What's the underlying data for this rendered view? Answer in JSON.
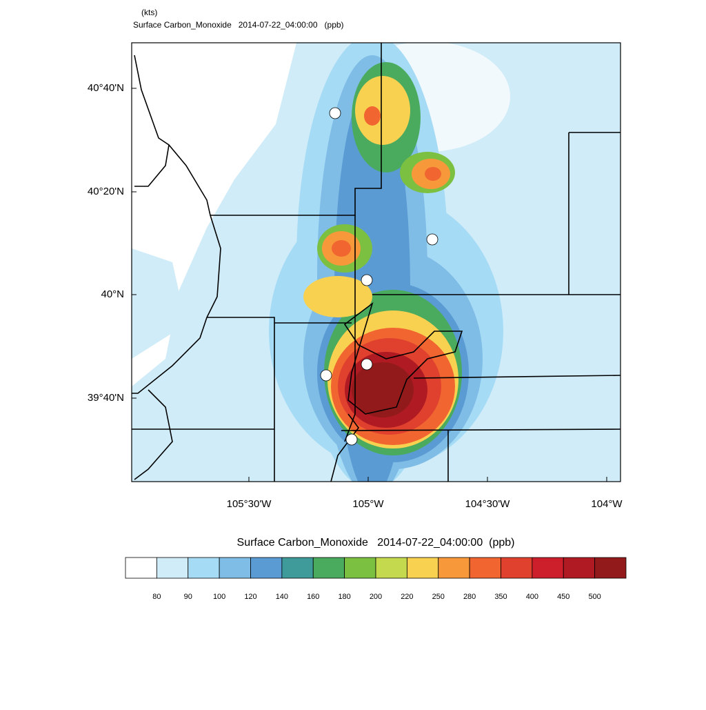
{
  "header": {
    "units": "(kts)",
    "title": "Surface Carbon_Monoxide   2014-07-22_04:00:00   (ppb)"
  },
  "map": {
    "lat_labels": [
      "40°40'N",
      "40°20'N",
      "40°N",
      "39°40'N"
    ],
    "lon_labels": [
      "105°30'W",
      "105°W",
      "104°30'W",
      "104°W"
    ]
  },
  "colorbar": {
    "title": "Surface Carbon_Monoxide   2014-07-22_04:00:00  (ppb)",
    "colors": [
      "#ffffff",
      "#d0ecf8",
      "#a6dbf5",
      "#7fbde6",
      "#5a9bd4",
      "#3f9a9a",
      "#4aab5e",
      "#7cc042",
      "#c5d94f",
      "#f9d150",
      "#f7993a",
      "#f06530",
      "#e0412e",
      "#cc1f2b",
      "#b01a22",
      "#921a1b"
    ],
    "labels": [
      "80",
      "90",
      "100",
      "120",
      "140",
      "160",
      "180",
      "200",
      "220",
      "250",
      "280",
      "350",
      "400",
      "450",
      "500"
    ]
  }
}
